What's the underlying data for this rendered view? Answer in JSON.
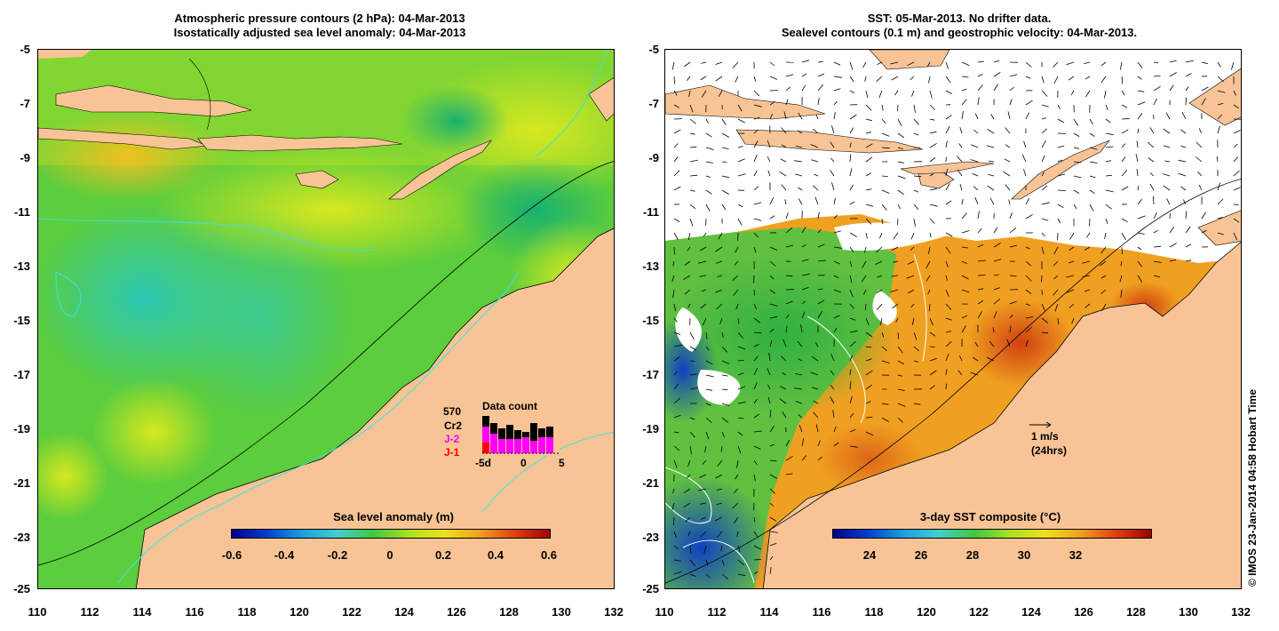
{
  "left_panel": {
    "title_line1": "Atmospheric pressure contours (2 hPa): 04-Mar-2013",
    "title_line2": "Isostatically adjusted sea level anomaly: 04-Mar-2013",
    "colorbar_title": "Sea level anomaly (m)",
    "colorbar_ticks": [
      "-0.6",
      "-0.4",
      "-0.2",
      "0",
      "0.2",
      "0.4",
      "0.6"
    ],
    "data_count": {
      "title": "Data count",
      "total": "570",
      "missions": [
        "Cr2",
        "J-2",
        "J-1"
      ],
      "mission_colors": [
        "#000000",
        "#ff00ff",
        "#ff0000"
      ],
      "xticks": [
        "-5d",
        "0",
        "5"
      ]
    }
  },
  "right_panel": {
    "title_line1": "SST: 05-Mar-2013. No drifter data.",
    "title_line2": "Sealevel contours (0.1 m) and geostrophic velocity: 04-Mar-2013.",
    "colorbar_title": "3-day SST composite (°C)",
    "colorbar_ticks": [
      "24",
      "26",
      "28",
      "30",
      "32"
    ],
    "velocity_scale": "1 m/s",
    "velocity_note": "(24hrs)"
  },
  "axes": {
    "lat_ticks": [
      "-5",
      "-7",
      "-9",
      "-11",
      "-13",
      "-15",
      "-17",
      "-19",
      "-21",
      "-23",
      "-25"
    ],
    "lon_ticks": [
      "110",
      "112",
      "114",
      "116",
      "118",
      "120",
      "122",
      "124",
      "126",
      "128",
      "130",
      "132"
    ]
  },
  "colors": {
    "land": "#f8c496",
    "coast_contour": "#40e0e0",
    "sla_mid": "#4cc84c",
    "sst_warm": "#f0a020"
  },
  "credit": "© IMOS 23-Jan-2014 04:58 Hobart Time"
}
